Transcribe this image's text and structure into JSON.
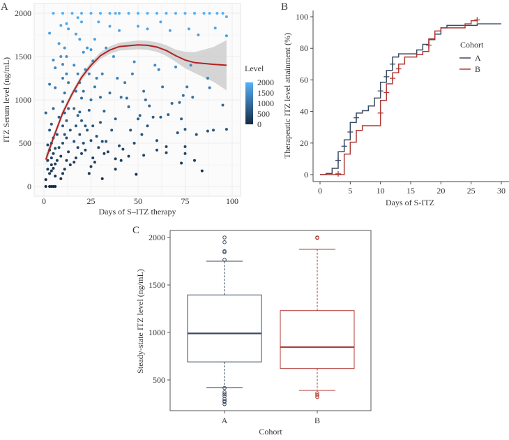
{
  "chart_data": [
    {
      "panel": "A",
      "type": "scatter",
      "xlabel": "Days of S–ITZ therapy",
      "ylabel": "ITZ Serum level (ng/mL)",
      "xlim": [
        -3,
        102
      ],
      "ylim": [
        -80,
        2070
      ],
      "xticks": [
        "0",
        "25",
        "50",
        "75",
        "100"
      ],
      "xtick_values": [
        0,
        25,
        50,
        75,
        100
      ],
      "yticks": [
        "0",
        "500",
        "1000",
        "1500",
        "2000"
      ],
      "ytick_values": [
        0,
        500,
        1000,
        1500,
        2000
      ],
      "grid": true,
      "legend": {
        "title": "Level",
        "labels": [
          "2000",
          "1500",
          "1000",
          "500",
          "0"
        ],
        "values": [
          2000,
          1500,
          1000,
          500,
          0
        ],
        "low_color": "#132b43",
        "high_color": "#56b1f7",
        "placement": "right"
      },
      "smooth_color": "#b22222",
      "smooth": [
        [
          1,
          310
        ],
        [
          5,
          560
        ],
        [
          10,
          850
        ],
        [
          15,
          1070
        ],
        [
          20,
          1260
        ],
        [
          25,
          1400
        ],
        [
          30,
          1510
        ],
        [
          35,
          1575
        ],
        [
          40,
          1615
        ],
        [
          50,
          1635
        ],
        [
          55,
          1630
        ],
        [
          60,
          1610
        ],
        [
          65,
          1570
        ],
        [
          70,
          1510
        ],
        [
          75,
          1460
        ],
        [
          80,
          1430
        ],
        [
          90,
          1410
        ],
        [
          97,
          1400
        ]
      ],
      "smooth_ci_halfwidth": [
        [
          1,
          60
        ],
        [
          5,
          40
        ],
        [
          10,
          35
        ],
        [
          20,
          35
        ],
        [
          30,
          40
        ],
        [
          40,
          45
        ],
        [
          50,
          50
        ],
        [
          60,
          55
        ],
        [
          70,
          70
        ],
        [
          80,
          120
        ],
        [
          90,
          200
        ],
        [
          97,
          290
        ]
      ],
      "points": [
        [
          1,
          0
        ],
        [
          3,
          0
        ],
        [
          4,
          0
        ],
        [
          5,
          0
        ],
        [
          6,
          0
        ],
        [
          1,
          80
        ],
        [
          2,
          200
        ],
        [
          2,
          300
        ],
        [
          3,
          150
        ],
        [
          3,
          420
        ],
        [
          3,
          650
        ],
        [
          4,
          180
        ],
        [
          4,
          250
        ],
        [
          4,
          330
        ],
        [
          4,
          500
        ],
        [
          4,
          720
        ],
        [
          5,
          210
        ],
        [
          5,
          380
        ],
        [
          5,
          560
        ],
        [
          5,
          900
        ],
        [
          5,
          1460
        ],
        [
          6,
          120
        ],
        [
          6,
          260
        ],
        [
          6,
          440
        ],
        [
          6,
          1140
        ],
        [
          6,
          1370
        ],
        [
          3,
          1770
        ],
        [
          3,
          1180
        ],
        [
          1,
          850
        ],
        [
          2,
          480
        ],
        [
          7,
          300
        ],
        [
          7,
          600
        ],
        [
          8,
          800
        ],
        [
          8,
          450
        ],
        [
          9,
          90
        ],
        [
          9,
          350
        ],
        [
          10,
          150
        ],
        [
          10,
          500
        ],
        [
          10,
          700
        ],
        [
          10,
          980
        ],
        [
          10,
          1250
        ],
        [
          10,
          1410
        ],
        [
          11,
          200
        ],
        [
          11,
          600
        ],
        [
          11,
          850
        ],
        [
          11,
          1080
        ],
        [
          11,
          1600
        ],
        [
          12,
          300
        ],
        [
          12,
          560
        ],
        [
          12,
          760
        ],
        [
          12,
          1300
        ],
        [
          12,
          1500
        ],
        [
          12,
          1880
        ],
        [
          13,
          400
        ],
        [
          13,
          900
        ],
        [
          13,
          1200
        ],
        [
          13,
          1820
        ],
        [
          14,
          250
        ],
        [
          14,
          650
        ],
        [
          9,
          1860
        ],
        [
          9,
          1500
        ],
        [
          8,
          1650
        ],
        [
          16,
          280
        ],
        [
          16,
          520
        ],
        [
          16,
          900
        ],
        [
          16,
          1400
        ],
        [
          17,
          330
        ],
        [
          17,
          700
        ],
        [
          17,
          1100
        ],
        [
          17,
          1760
        ],
        [
          18,
          450
        ],
        [
          18,
          820
        ],
        [
          18,
          1300
        ],
        [
          18,
          1950
        ],
        [
          19,
          600
        ],
        [
          19,
          860
        ],
        [
          19,
          1200
        ],
        [
          19,
          1700
        ],
        [
          20,
          380
        ],
        [
          20,
          760
        ],
        [
          20,
          1020
        ],
        [
          20,
          1900
        ],
        [
          21,
          500
        ],
        [
          21,
          1100
        ],
        [
          21,
          1550
        ],
        [
          22,
          700
        ],
        [
          22,
          420
        ],
        [
          22,
          1350
        ],
        [
          23,
          650
        ],
        [
          23,
          1600
        ],
        [
          24,
          150
        ],
        [
          24,
          880
        ],
        [
          24,
          1300
        ],
        [
          25,
          230
        ],
        [
          25,
          530
        ],
        [
          25,
          1000
        ],
        [
          25,
          1580
        ],
        [
          26,
          330
        ],
        [
          26,
          700
        ],
        [
          26,
          1450
        ],
        [
          27,
          280
        ],
        [
          27,
          1150
        ],
        [
          27,
          1700
        ],
        [
          28,
          580
        ],
        [
          28,
          1250
        ],
        [
          29,
          450
        ],
        [
          29,
          1900
        ],
        [
          30,
          740
        ],
        [
          30,
          1030
        ],
        [
          31,
          90
        ],
        [
          31,
          520
        ],
        [
          31,
          1300
        ],
        [
          32,
          380
        ],
        [
          32,
          870
        ],
        [
          33,
          520
        ],
        [
          33,
          1600
        ],
        [
          34,
          400
        ],
        [
          35,
          1080
        ],
        [
          35,
          1850
        ],
        [
          36,
          650
        ],
        [
          37,
          1500
        ],
        [
          38,
          200
        ],
        [
          38,
          320
        ],
        [
          38,
          780
        ],
        [
          39,
          1250
        ],
        [
          40,
          470
        ],
        [
          40,
          1800
        ],
        [
          41,
          300
        ],
        [
          41,
          1030
        ],
        [
          42,
          430
        ],
        [
          43,
          1200
        ],
        [
          44,
          1020
        ],
        [
          45,
          350
        ],
        [
          45,
          920
        ],
        [
          46,
          650
        ],
        [
          47,
          1300
        ],
        [
          48,
          500
        ],
        [
          48,
          1440
        ],
        [
          49,
          140
        ],
        [
          50,
          780
        ],
        [
          50,
          1850
        ],
        [
          51,
          820
        ],
        [
          52,
          600
        ],
        [
          53,
          360
        ],
        [
          53,
          1100
        ],
        [
          54,
          1000
        ],
        [
          55,
          700
        ],
        [
          55,
          1820
        ],
        [
          56,
          930
        ],
        [
          58,
          800
        ],
        [
          59,
          1400
        ],
        [
          60,
          420
        ],
        [
          60,
          530
        ],
        [
          61,
          1350
        ],
        [
          62,
          800
        ],
        [
          62,
          1900
        ],
        [
          63,
          1150
        ],
        [
          65,
          390
        ],
        [
          65,
          460
        ],
        [
          66,
          830
        ],
        [
          67,
          1800
        ],
        [
          68,
          960
        ],
        [
          70,
          1380
        ],
        [
          71,
          620
        ],
        [
          72,
          970
        ],
        [
          73,
          270
        ],
        [
          73,
          780
        ],
        [
          74,
          1050
        ],
        [
          75,
          660
        ],
        [
          75,
          460
        ],
        [
          75,
          380
        ],
        [
          76,
          1150
        ],
        [
          77,
          1820
        ],
        [
          78,
          1400
        ],
        [
          79,
          1030
        ],
        [
          80,
          300
        ],
        [
          81,
          600
        ],
        [
          82,
          1750
        ],
        [
          84,
          180
        ],
        [
          87,
          640
        ],
        [
          87,
          1250
        ],
        [
          88,
          1140
        ],
        [
          90,
          650
        ],
        [
          91,
          1830
        ],
        [
          95,
          940
        ],
        [
          97,
          660
        ],
        [
          97,
          1740
        ],
        [
          97,
          1960
        ],
        [
          5,
          2000
        ],
        [
          10,
          2000
        ],
        [
          15,
          2000
        ],
        [
          20,
          2000
        ],
        [
          25,
          2000
        ],
        [
          30,
          2000
        ],
        [
          35,
          2000
        ],
        [
          38,
          2000
        ],
        [
          40,
          2000
        ],
        [
          45,
          2000
        ],
        [
          50,
          2000
        ],
        [
          55,
          2000
        ],
        [
          60,
          2000
        ],
        [
          65,
          2000
        ],
        [
          70,
          2000
        ],
        [
          75,
          2000
        ],
        [
          80,
          2000
        ],
        [
          85,
          2000
        ],
        [
          88,
          2000
        ],
        [
          92,
          2000
        ],
        [
          95,
          2000
        ]
      ]
    },
    {
      "panel": "B",
      "type": "line",
      "subtype": "kaplan-meier step",
      "xlabel": "Days of S-ITZ",
      "ylabel": "Therapeutic ITZ level attainment (%)",
      "xlim": [
        0,
        30
      ],
      "ylim": [
        0,
        100
      ],
      "xticks": [
        "0",
        "5",
        "10",
        "15",
        "20",
        "25",
        "30"
      ],
      "xtick_values": [
        0,
        5,
        10,
        15,
        20,
        25,
        30
      ],
      "yticks": [
        "0",
        "20",
        "40",
        "60",
        "80",
        "100"
      ],
      "ytick_values": [
        0,
        20,
        40,
        60,
        80,
        100
      ],
      "legend": {
        "title": "Cohort",
        "placement": "right"
      },
      "series": [
        {
          "name": "A",
          "color": "#3b4a63",
          "steps": [
            [
              0,
              0
            ],
            [
              1,
              0.7
            ],
            [
              2,
              4
            ],
            [
              3,
              14.5
            ],
            [
              4,
              22
            ],
            [
              5,
              33
            ],
            [
              6,
              39
            ],
            [
              7,
              40.5
            ],
            [
              8,
              43.5
            ],
            [
              9,
              48.5
            ],
            [
              10,
              58.5
            ],
            [
              11,
              66
            ],
            [
              12,
              74.5
            ],
            [
              13,
              76.5
            ],
            [
              16,
              79
            ],
            [
              17,
              82.5
            ],
            [
              18,
              85.5
            ],
            [
              19,
              89
            ],
            [
              20,
              93
            ],
            [
              21,
              94.5
            ],
            [
              26,
              95.5
            ],
            [
              30,
              95.5
            ]
          ],
          "censored": [
            [
              3,
              9
            ],
            [
              4,
              18
            ],
            [
              5,
              27
            ],
            [
              6,
              36
            ],
            [
              10,
              53
            ],
            [
              11,
              62
            ],
            [
              12,
              70
            ]
          ]
        },
        {
          "name": "B",
          "color": "#b03a35",
          "steps": [
            [
              0,
              0
            ],
            [
              4,
              13
            ],
            [
              5,
              20.5
            ],
            [
              6,
              28
            ],
            [
              7,
              31
            ],
            [
              10,
              47
            ],
            [
              11,
              57.5
            ],
            [
              12,
              64.5
            ],
            [
              13,
              70
            ],
            [
              14,
              74.5
            ],
            [
              16,
              76
            ],
            [
              17,
              78
            ],
            [
              18,
              86
            ],
            [
              19,
              91
            ],
            [
              20,
              93
            ],
            [
              24,
              95.5
            ],
            [
              25,
              97.5
            ],
            [
              26,
              97.5
            ]
          ],
          "censored": [
            [
              3,
              0.5
            ],
            [
              10,
              39
            ],
            [
              11,
              52
            ],
            [
              12,
              61
            ],
            [
              13,
              67
            ],
            [
              18,
              82
            ],
            [
              26,
              98
            ]
          ]
        }
      ]
    },
    {
      "panel": "C",
      "type": "box",
      "xlabel": "Cohort",
      "ylabel": "Steady-state ITZ level (ng/mL)",
      "ylim": [
        175,
        2075
      ],
      "yticks": [
        "500",
        "1000",
        "1500",
        "2000"
      ],
      "ytick_values": [
        500,
        1000,
        1500,
        2000
      ],
      "categories": [
        "A",
        "B"
      ],
      "boxes": [
        {
          "name": "A",
          "color": "#3b4a63",
          "whisker_low": 420,
          "q1": 690,
          "median": 990,
          "q3": 1395,
          "whisker_high": 1750,
          "outliers": [
            2000,
            1950,
            1855,
            1845,
            1765,
            415,
            370,
            350,
            330,
            300,
            280,
            270,
            245
          ]
        },
        {
          "name": "B",
          "color": "#b03a35",
          "whisker_low": 390,
          "q1": 620,
          "median": 845,
          "q3": 1230,
          "whisker_high": 1875,
          "outliers": [
            2000,
            1995,
            360,
            340,
            320
          ]
        }
      ]
    }
  ],
  "panel_labels": {
    "a": "A",
    "b": "B",
    "c": "C"
  }
}
